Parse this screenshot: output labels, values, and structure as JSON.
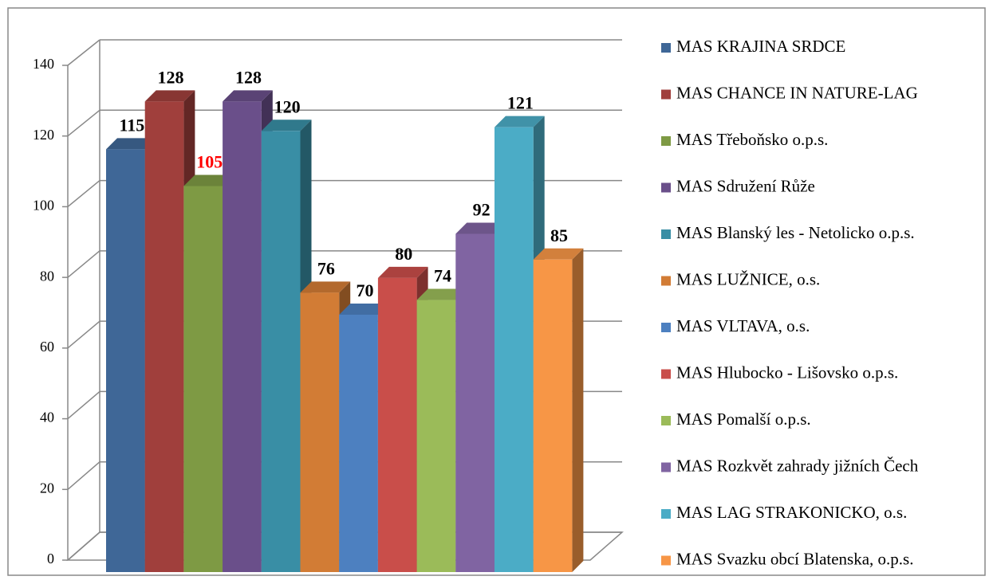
{
  "chart_data": {
    "type": "bar3d",
    "ylim": [
      0,
      140
    ],
    "yticks": [
      0,
      20,
      40,
      60,
      80,
      100,
      120,
      140
    ],
    "grid": true,
    "legend": "right",
    "series": [
      {
        "name": " MAS KRAJINA SRDCE",
        "color": "#3f6797",
        "values": [
          115
        ]
      },
      {
        "name": "MAS CHANCE IN NATURE-LAG",
        "color": "#a03f3c",
        "values": [
          128
        ]
      },
      {
        "name": "MAS Třeboňsko o.p.s.",
        "color": "#7e9a44",
        "values": [
          105
        ],
        "label_color": "#ff0000"
      },
      {
        "name": "MAS Sdružení Růže",
        "color": "#6a4f8a",
        "values": [
          128
        ]
      },
      {
        "name": "MAS Blanský les - Netolicko o.p.s.",
        "color": "#398ea5",
        "values": [
          120
        ]
      },
      {
        "name": "MAS LUŽNICE, o.s.",
        "color": "#d27c35",
        "values": [
          76
        ]
      },
      {
        "name": "MAS VLTAVA, o.s.",
        "color": "#4d80c0",
        "values": [
          70
        ]
      },
      {
        "name": "MAS Hlubocko - Lišovsko o.p.s.",
        "color": "#c94e4a",
        "values": [
          80
        ]
      },
      {
        "name": "MAS Pomalší o.p.s.",
        "color": "#9bbb59",
        "values": [
          74
        ]
      },
      {
        "name": "MAS Rozkvět zahrady jižních Čech",
        "color": "#8064a2",
        "values": [
          92
        ]
      },
      {
        "name": "MAS LAG STRAKONICKO, o.s.",
        "color": "#4bacc6",
        "values": [
          121
        ]
      },
      {
        "name": "MAS Svazku obcí Blatenska, o.p.s.",
        "color": "#f79646",
        "values": [
          85
        ]
      }
    ]
  }
}
